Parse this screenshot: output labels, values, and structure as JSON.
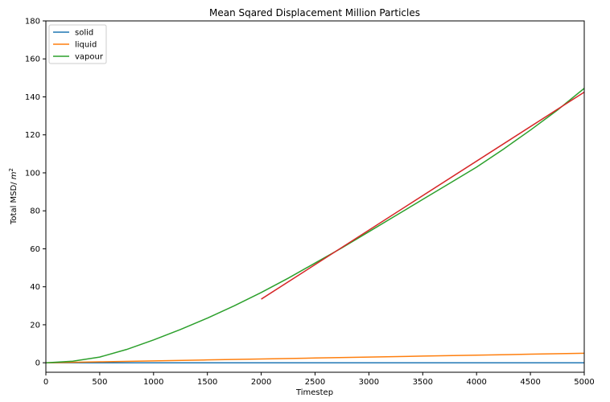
{
  "chart_data": {
    "type": "line",
    "title": "Mean Sqared Displacement Million Particles",
    "xlabel": "Timestep",
    "ylabel_main": "Total MSD/ ",
    "ylabel_unit_base": "m",
    "ylabel_unit_exp": "2",
    "xlim": [
      0,
      5000
    ],
    "ylim": [
      -5,
      180
    ],
    "xticks": [
      0,
      500,
      1000,
      1500,
      2000,
      2500,
      3000,
      3500,
      4000,
      4500,
      5000
    ],
    "yticks": [
      0,
      20,
      40,
      60,
      80,
      100,
      120,
      140,
      160,
      180
    ],
    "grid": false,
    "legend_position": "upper-left",
    "series": [
      {
        "name": "solid",
        "color": "#1f77b4",
        "x": [
          0,
          1000,
          2000,
          3000,
          4000,
          5000
        ],
        "y": [
          0,
          0,
          0,
          0,
          0,
          0
        ]
      },
      {
        "name": "liquid",
        "color": "#ff7f0e",
        "x": [
          0,
          500,
          1000,
          1500,
          2000,
          2500,
          3000,
          3500,
          4000,
          4500,
          5000
        ],
        "y": [
          0,
          0.5,
          1.0,
          1.5,
          2.0,
          2.5,
          3.0,
          3.5,
          4.0,
          4.5,
          5.0
        ]
      },
      {
        "name": "vapour",
        "color": "#2ca02c",
        "x": [
          0,
          250,
          500,
          750,
          1000,
          1250,
          1500,
          1750,
          2000,
          2250,
          2500,
          2750,
          3000,
          3250,
          3500,
          3750,
          4000,
          4250,
          4500,
          4750,
          5000
        ],
        "y": [
          0,
          0.8,
          3,
          7,
          12,
          17.5,
          23.5,
          30,
          37,
          44.5,
          52.5,
          60.5,
          69,
          77.5,
          86,
          94.5,
          103,
          112.5,
          122.5,
          133,
          144.5
        ]
      },
      {
        "color": "#d62728",
        "x": [
          2000,
          5000
        ],
        "y": [
          33.5,
          142.5
        ]
      }
    ]
  }
}
